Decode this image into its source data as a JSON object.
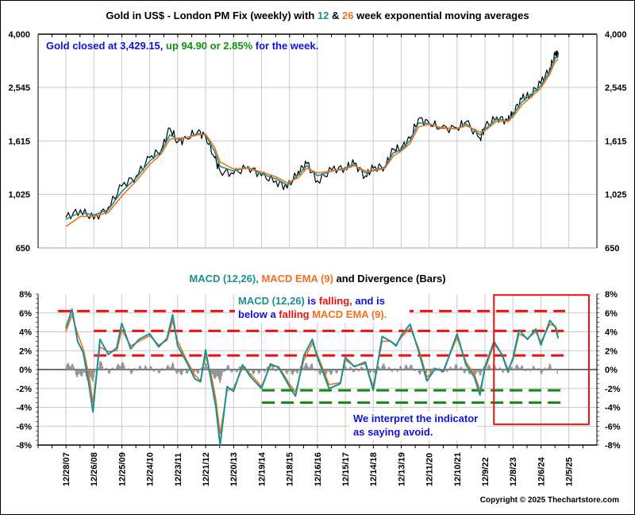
{
  "chart_data": [
    {
      "type": "line",
      "title": "Gold in US$ - London PM Fix (weekly) with 12 & 26 week exponential moving averages",
      "title_parts": [
        {
          "text": "Gold in US$ - London PM Fix (weekly) with ",
          "color": "#000000"
        },
        {
          "text": "12",
          "color": "#1a9090"
        },
        {
          "text": " & ",
          "color": "#000000"
        },
        {
          "text": "26",
          "color": "#f07020"
        },
        {
          "text": " week exponential moving averages",
          "color": "#000000"
        }
      ],
      "annotation_parts": [
        {
          "text": "Gold closed at 3,429.15, ",
          "color": "#1010dd"
        },
        {
          "text": "up 94.90 or 2.85%",
          "color": "#109010"
        },
        {
          "text": " for the week.",
          "color": "#1010dd"
        }
      ],
      "yscale": "log",
      "ylim": [
        650,
        4000
      ],
      "yticks": [
        "4,000",
        "2,545",
        "1,615",
        "1,025",
        "650"
      ],
      "ytick_values": [
        4000,
        2545,
        1615,
        1025,
        650
      ],
      "xlabel": "",
      "ylabel": "",
      "grid": true,
      "x": [
        2007.98,
        2008.5,
        2008.98,
        2009.5,
        2009.98,
        2010.5,
        2010.98,
        2011.4,
        2011.7,
        2011.98,
        2012.3,
        2012.7,
        2012.98,
        2013.3,
        2013.5,
        2013.98,
        2014.5,
        2014.98,
        2015.5,
        2015.9,
        2016.3,
        2016.6,
        2016.98,
        2017.5,
        2017.98,
        2018.3,
        2018.7,
        2018.98,
        2019.4,
        2019.7,
        2019.98,
        2020.3,
        2020.6,
        2020.98,
        2021.4,
        2021.98,
        2022.3,
        2022.8,
        2022.98,
        2023.4,
        2023.8,
        2023.98,
        2024.3,
        2024.6,
        2024.98,
        2025.3,
        2025.5,
        2025.6
      ],
      "series": [
        {
          "name": "Gold weekly close",
          "color": "#000000",
          "values": [
            840,
            900,
            830,
            920,
            1100,
            1200,
            1400,
            1500,
            1800,
            1600,
            1650,
            1750,
            1680,
            1400,
            1250,
            1220,
            1300,
            1200,
            1150,
            1080,
            1250,
            1330,
            1150,
            1260,
            1290,
            1330,
            1200,
            1280,
            1300,
            1500,
            1520,
            1650,
            1950,
            1880,
            1800,
            1800,
            1900,
            1650,
            1810,
            1980,
            1900,
            2060,
            2300,
            2400,
            2630,
            3000,
            3350,
            3429.15
          ]
        },
        {
          "name": "12 week EMA",
          "color": "#1a9090",
          "values": [
            830,
            880,
            860,
            900,
            1050,
            1180,
            1360,
            1480,
            1700,
            1640,
            1660,
            1720,
            1700,
            1480,
            1300,
            1250,
            1290,
            1220,
            1170,
            1110,
            1210,
            1310,
            1200,
            1250,
            1280,
            1320,
            1230,
            1260,
            1290,
            1460,
            1500,
            1620,
            1880,
            1870,
            1800,
            1790,
            1870,
            1700,
            1780,
            1950,
            1910,
            2020,
            2250,
            2380,
            2580,
            2920,
            3280,
            3340
          ]
        },
        {
          "name": "26 week EMA",
          "color": "#f07020",
          "values": [
            780,
            850,
            850,
            880,
            1010,
            1150,
            1320,
            1450,
            1640,
            1650,
            1660,
            1700,
            1710,
            1530,
            1350,
            1270,
            1280,
            1240,
            1190,
            1130,
            1180,
            1280,
            1230,
            1250,
            1270,
            1310,
            1250,
            1250,
            1280,
            1420,
            1480,
            1580,
            1820,
            1860,
            1810,
            1790,
            1840,
            1740,
            1760,
            1910,
            1910,
            1980,
            2190,
            2330,
            2530,
            2850,
            3180,
            3230
          ]
        }
      ]
    },
    {
      "type": "line",
      "title": "MACD (12,26), MACD EMA (9) and Divergence (Bars)",
      "title_parts": [
        {
          "text": "MACD (12,26), ",
          "color": "#1a9090"
        },
        {
          "text": "MACD EMA (9)",
          "color": "#f07020"
        },
        {
          "text": " and Divergence (Bars)",
          "color": "#000000"
        }
      ],
      "ylim": [
        -8,
        8
      ],
      "yticks": [
        "8%",
        "6%",
        "4%",
        "2%",
        "0%",
        "-2%",
        "-4%",
        "-6%",
        "-8%"
      ],
      "ytick_values": [
        8,
        6,
        4,
        2,
        0,
        -2,
        -4,
        -6,
        -8
      ],
      "xticks": [
        "12/28/07",
        "12/26/08",
        "12/25/09",
        "12/24/10",
        "12/23/11",
        "12/21/12",
        "12/20/13",
        "12/19/14",
        "12/18/15",
        "12/16/16",
        "12/15/17",
        "12/14/18",
        "12/13/19",
        "12/11/20",
        "12/10/21",
        "12/9/22",
        "12/8/23",
        "12/6/24",
        "12/5/25"
      ],
      "xtick_values": [
        2007.98,
        2008.98,
        2009.98,
        2010.98,
        2011.98,
        2012.98,
        2013.98,
        2014.98,
        2015.98,
        2016.98,
        2017.98,
        2018.98,
        2019.98,
        2020.98,
        2021.98,
        2022.98,
        2023.98,
        2024.98,
        2025.98
      ],
      "grid": true,
      "x": [
        2007.98,
        2008.2,
        2008.4,
        2008.6,
        2008.8,
        2008.95,
        2009.2,
        2009.5,
        2009.8,
        2009.98,
        2010.3,
        2010.6,
        2010.98,
        2011.3,
        2011.6,
        2011.8,
        2011.98,
        2012.3,
        2012.6,
        2012.8,
        2012.98,
        2013.2,
        2013.35,
        2013.5,
        2013.75,
        2013.98,
        2014.3,
        2014.6,
        2014.98,
        2015.3,
        2015.6,
        2015.98,
        2016.2,
        2016.5,
        2016.8,
        2016.98,
        2017.4,
        2017.8,
        2017.98,
        2018.3,
        2018.7,
        2018.98,
        2019.3,
        2019.6,
        2019.8,
        2019.98,
        2020.3,
        2020.6,
        2020.9,
        2021.2,
        2021.5,
        2021.98,
        2022.3,
        2022.6,
        2022.8,
        2022.98,
        2023.3,
        2023.6,
        2023.8,
        2023.98,
        2024.2,
        2024.5,
        2024.8,
        2024.98,
        2025.3,
        2025.5,
        2025.6
      ],
      "series": [
        {
          "name": "MACD (12,26)",
          "color": "#1a9090",
          "values": [
            4.4,
            6.4,
            3.0,
            1.8,
            -1.5,
            -4.5,
            3.2,
            1.6,
            2.3,
            4.9,
            2.2,
            3.2,
            3.8,
            2.4,
            3.3,
            5.8,
            2.5,
            0.8,
            -1.0,
            -1.3,
            2.1,
            -1.5,
            -4.0,
            -8.0,
            -1.8,
            -2.3,
            0.5,
            -0.8,
            -2.0,
            0.6,
            0.2,
            -1.8,
            -2.8,
            1.5,
            3.2,
            1.3,
            -2.0,
            -1.5,
            1.3,
            0.3,
            0.8,
            -2.2,
            3.5,
            3.0,
            2.5,
            3.6,
            4.8,
            2.0,
            -1.2,
            0.1,
            -0.2,
            3.8,
            0.5,
            -0.8,
            -2.7,
            0.3,
            3.0,
            1.5,
            -0.2,
            1.2,
            4.2,
            3.2,
            4.3,
            2.6,
            5.2,
            4.5,
            3.3
          ]
        },
        {
          "name": "MACD EMA (9)",
          "color": "#f07020",
          "values": [
            4.0,
            5.8,
            3.8,
            2.2,
            -0.5,
            -3.5,
            2.4,
            1.9,
            2.0,
            4.2,
            2.5,
            3.0,
            3.6,
            2.6,
            3.1,
            5.2,
            3.0,
            1.0,
            -0.6,
            -1.2,
            1.5,
            -0.8,
            -3.2,
            -6.8,
            -2.2,
            -2.0,
            0.2,
            -0.5,
            -1.8,
            0.4,
            0.3,
            -1.5,
            -2.4,
            1.0,
            2.8,
            1.6,
            -1.6,
            -1.4,
            1.0,
            0.4,
            0.6,
            -1.8,
            3.0,
            3.0,
            2.6,
            3.4,
            4.4,
            2.3,
            -0.8,
            0.0,
            0.0,
            3.4,
            0.8,
            -0.5,
            -2.2,
            0.0,
            2.7,
            1.6,
            0.0,
            1.0,
            3.8,
            3.3,
            4.0,
            2.9,
            4.8,
            4.6,
            3.8
          ]
        },
        {
          "name": "Divergence (Bars)",
          "color": "#909090",
          "values": [
            0.4,
            0.6,
            -0.8,
            -0.4,
            -1.0,
            -1.0,
            0.8,
            -0.3,
            0.3,
            0.7,
            -0.3,
            0.2,
            0.2,
            -0.2,
            0.2,
            0.6,
            -0.5,
            -0.2,
            -0.4,
            -0.1,
            0.6,
            -0.7,
            -0.8,
            -1.2,
            0.4,
            -0.3,
            0.3,
            -0.3,
            -0.2,
            0.2,
            -0.1,
            -0.3,
            -0.4,
            0.5,
            0.4,
            -0.3,
            -0.4,
            -0.1,
            0.3,
            -0.1,
            0.2,
            -0.4,
            0.5,
            0.0,
            -0.1,
            0.2,
            0.4,
            -0.3,
            -0.4,
            0.1,
            -0.2,
            0.4,
            -0.3,
            -0.3,
            -0.5,
            0.3,
            0.3,
            -0.1,
            -0.2,
            0.2,
            0.4,
            -0.1,
            0.3,
            -0.3,
            0.4,
            -0.1,
            -0.5
          ]
        }
      ],
      "reference_lines": [
        {
          "level": 6.2,
          "color": "#ee1111",
          "from": 2007.7,
          "to": 2025.85
        },
        {
          "level": 4.1,
          "color": "#ee1111",
          "from": 2008.98,
          "to": 2025.85
        },
        {
          "level": 1.5,
          "color": "#ee1111",
          "from": 2008.98,
          "to": 2025.85
        },
        {
          "level": -2.2,
          "color": "#118811",
          "from": 2015.0,
          "to": 2025.85
        },
        {
          "level": -3.5,
          "color": "#118811",
          "from": 2015.0,
          "to": 2025.85
        }
      ],
      "highlight_box": {
        "from": 2023.3,
        "to": 2026.7,
        "top": 7.9,
        "bottom": -5.8,
        "color": "#ee1111"
      },
      "annotations": [
        {
          "id": "macd-note",
          "lines": [
            [
              {
                "text": "MACD (12,26)",
                "color": "#1a9090"
              },
              {
                "text": " is ",
                "color": "#1010dd"
              },
              {
                "text": "falling,",
                "color": "#ee1111"
              },
              {
                "text": " and is",
                "color": "#1010dd"
              }
            ],
            [
              {
                "text": "below a ",
                "color": "#1010dd"
              },
              {
                "text": "falling",
                "color": "#ee1111"
              },
              {
                "text": " MACD EMA (9).",
                "color": "#f07020"
              }
            ]
          ]
        },
        {
          "id": "avoid-note",
          "lines": [
            [
              {
                "text": "We interpret the indicator",
                "color": "#1010dd"
              }
            ],
            [
              {
                "text": "as saying avoid.",
                "color": "#1010dd"
              }
            ]
          ]
        }
      ]
    }
  ],
  "footer": {
    "copyright": "Copyright © 2025 Thechartstore.com"
  }
}
